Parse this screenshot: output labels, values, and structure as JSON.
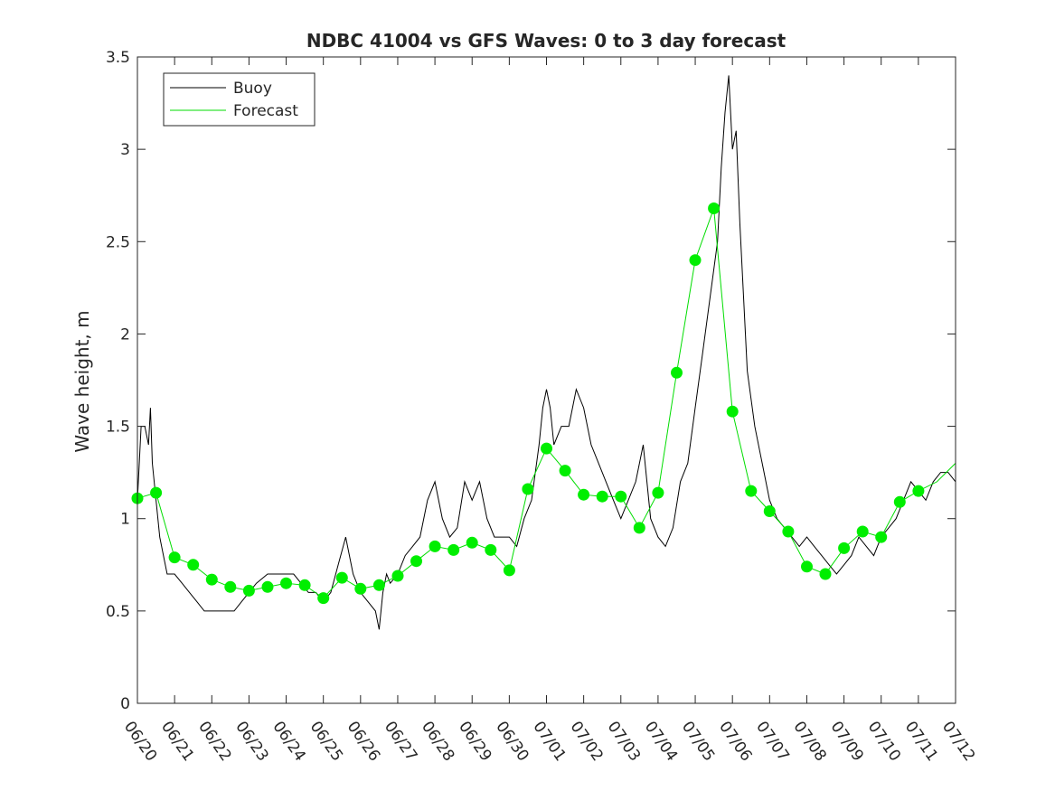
{
  "chart_data": {
    "type": "line",
    "title": "NDBC 41004 vs GFS Waves: 0 to 3 day forecast",
    "xlabel": "",
    "ylabel": "Wave height, m",
    "ylim": [
      0,
      3.5
    ],
    "yticks": [
      0,
      0.5,
      1,
      1.5,
      2,
      2.5,
      3,
      3.5
    ],
    "ytick_labels": [
      "0",
      "0.5",
      "1",
      "1.5",
      "2",
      "2.5",
      "3",
      "3.5"
    ],
    "xlim": [
      "06/20",
      "07/12"
    ],
    "x_categories": [
      "06/20",
      "06/21",
      "06/22",
      "06/23",
      "06/24",
      "06/25",
      "06/26",
      "06/27",
      "06/28",
      "06/29",
      "06/30",
      "07/01",
      "07/02",
      "07/03",
      "07/04",
      "07/05",
      "07/06",
      "07/07",
      "07/08",
      "07/09",
      "07/10",
      "07/11",
      "07/12"
    ],
    "grid": false,
    "legend": {
      "placement": "top-left",
      "entries": [
        {
          "label": "Buoy",
          "color": "#000000"
        },
        {
          "label": "Forecast",
          "color": "#00dd00"
        }
      ]
    },
    "colors": {
      "buoy": "#000000",
      "forecast": "#00dd00",
      "forecast_marker": "#00ee00"
    },
    "series": [
      {
        "name": "Buoy",
        "x_days": [
          0,
          0.1,
          0.2,
          0.3,
          0.35,
          0.4,
          0.5,
          0.6,
          0.7,
          0.8,
          0.9,
          1.0,
          1.2,
          1.4,
          1.6,
          1.8,
          2.0,
          2.2,
          2.4,
          2.6,
          2.8,
          3.0,
          3.2,
          3.5,
          4.0,
          4.2,
          4.4,
          4.6,
          4.8,
          5.0,
          5.2,
          5.4,
          5.6,
          5.8,
          6.0,
          6.2,
          6.4,
          6.5,
          6.6,
          6.7,
          6.8,
          7.0,
          7.2,
          7.4,
          7.6,
          7.8,
          8.0,
          8.2,
          8.4,
          8.6,
          8.8,
          9.0,
          9.2,
          9.4,
          9.6,
          9.8,
          10.0,
          10.2,
          10.4,
          10.6,
          10.8,
          10.9,
          11.0,
          11.1,
          11.2,
          11.4,
          11.6,
          11.8,
          12.0,
          12.2,
          12.4,
          12.6,
          12.8,
          13.0,
          13.2,
          13.4,
          13.6,
          13.8,
          14.0,
          14.2,
          14.4,
          14.6,
          14.8,
          15.0,
          15.2,
          15.4,
          15.6,
          15.7,
          15.8,
          15.9,
          16.0,
          16.1,
          16.2,
          16.3,
          16.4,
          16.6,
          16.8,
          17.0,
          17.2,
          17.4,
          17.6,
          17.8,
          18.0,
          18.2,
          18.4,
          18.6,
          18.8,
          19.0,
          19.2,
          19.4,
          19.6,
          19.8,
          20.0,
          20.2,
          20.4,
          20.6,
          20.8,
          21.0,
          21.2,
          21.4,
          21.6,
          21.8,
          22.0
        ],
        "values": [
          1.1,
          1.5,
          1.5,
          1.4,
          1.6,
          1.3,
          1.1,
          0.9,
          0.8,
          0.7,
          0.7,
          0.7,
          0.65,
          0.6,
          0.55,
          0.5,
          0.5,
          0.5,
          0.5,
          0.5,
          0.55,
          0.6,
          0.65,
          0.7,
          0.7,
          0.7,
          0.65,
          0.6,
          0.6,
          0.55,
          0.6,
          0.75,
          0.9,
          0.7,
          0.6,
          0.55,
          0.5,
          0.4,
          0.6,
          0.7,
          0.65,
          0.7,
          0.8,
          0.85,
          0.9,
          1.1,
          1.2,
          1.0,
          0.9,
          0.95,
          1.2,
          1.1,
          1.2,
          1.0,
          0.9,
          0.9,
          0.9,
          0.85,
          1.0,
          1.1,
          1.4,
          1.6,
          1.7,
          1.6,
          1.4,
          1.5,
          1.5,
          1.7,
          1.6,
          1.4,
          1.3,
          1.2,
          1.1,
          1.0,
          1.1,
          1.2,
          1.4,
          1.0,
          0.9,
          0.85,
          0.95,
          1.2,
          1.3,
          1.6,
          1.9,
          2.2,
          2.5,
          2.9,
          3.2,
          3.4,
          3.0,
          3.1,
          2.6,
          2.2,
          1.8,
          1.5,
          1.3,
          1.1,
          1.0,
          0.95,
          0.9,
          0.85,
          0.9,
          0.85,
          0.8,
          0.75,
          0.7,
          0.75,
          0.8,
          0.9,
          0.85,
          0.8,
          0.9,
          0.95,
          1.0,
          1.1,
          1.2,
          1.15,
          1.1,
          1.2,
          1.25,
          1.25,
          1.2
        ]
      },
      {
        "name": "Forecast",
        "x_days": [
          0,
          0.5,
          1,
          1.5,
          2,
          2.5,
          3,
          3.5,
          4,
          4.5,
          5,
          5.5,
          6,
          6.5,
          7,
          7.5,
          8,
          8.5,
          9,
          9.5,
          10,
          10.5,
          11,
          11.5,
          12,
          12.5,
          13,
          13.5,
          14,
          14.5,
          15,
          15.5,
          16,
          16.5,
          17,
          17.5,
          18,
          18.5,
          19,
          19.5,
          20,
          20.5,
          21,
          21.5,
          22
        ],
        "values": [
          1.11,
          1.14,
          0.79,
          0.75,
          0.67,
          0.63,
          0.61,
          0.63,
          0.65,
          0.64,
          0.57,
          0.68,
          0.62,
          0.64,
          0.69,
          0.77,
          0.85,
          0.83,
          0.87,
          0.83,
          0.72,
          1.16,
          1.38,
          1.26,
          1.13,
          1.12,
          1.12,
          0.95,
          1.14,
          1.79,
          2.4,
          2.68,
          1.58,
          1.15,
          1.04,
          0.93,
          0.74,
          0.7,
          0.84,
          0.93,
          0.9,
          1.09,
          1.15,
          1.2,
          1.3
        ]
      }
    ],
    "markers": {
      "x_days": [
        0,
        0.5,
        1,
        1.5,
        2,
        2.5,
        3,
        3.5,
        4,
        4.5,
        5,
        5.5,
        6,
        6.5,
        7,
        7.5,
        8,
        8.5,
        9,
        9.5,
        10,
        10.5,
        11,
        11.5,
        12,
        12.5,
        13,
        13.5,
        14,
        14.5,
        15,
        15.5,
        16,
        16.5,
        17,
        17.5,
        18,
        18.5,
        19,
        19.5,
        20,
        20.5,
        21
      ],
      "values": [
        1.11,
        1.14,
        0.79,
        0.75,
        0.67,
        0.63,
        0.61,
        0.63,
        0.65,
        0.64,
        0.57,
        0.68,
        0.62,
        0.64,
        0.69,
        0.77,
        0.85,
        0.83,
        0.87,
        0.83,
        0.72,
        1.16,
        1.38,
        1.26,
        1.13,
        1.12,
        1.12,
        0.95,
        1.14,
        1.79,
        2.4,
        2.68,
        1.58,
        1.15,
        1.04,
        0.93,
        0.74,
        0.7,
        0.84,
        0.93,
        0.9,
        1.09,
        1.15
      ]
    }
  }
}
